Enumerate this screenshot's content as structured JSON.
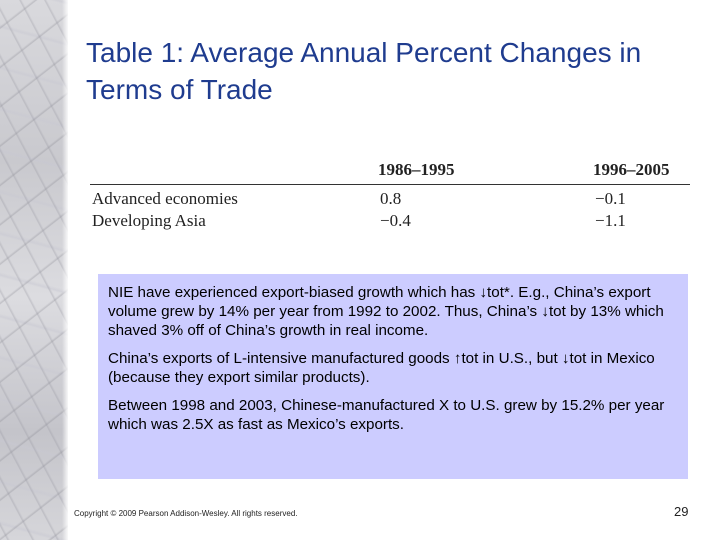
{
  "slide": {
    "title": "Table 1: Average Annual Percent Changes in Terms of Trade",
    "table": {
      "headers": [
        "",
        "1986–1995",
        "1996–2005"
      ],
      "rows": [
        {
          "label": "Advanced economies",
          "v1": "0.8",
          "v2": "−0.1"
        },
        {
          "label": "Developing Asia",
          "v1": "−0.4",
          "v2": "−1.1"
        }
      ]
    },
    "note": {
      "paragraphs": [
        "NIE have experienced export-biased growth which has ↓tot*. E.g., China’s export volume grew by 14% per year from 1992 to 2002. Thus, China’s ↓tot by 13% which shaved 3% off of China’s growth in real income.",
        "China’s exports of L-intensive manufactured goods ↑tot in U.S., but ↓tot in Mexico (because they export similar products).",
        "Between 1998 and 2003, Chinese-manufactured X to U.S. grew by 15.2% per year which was 2.5X as fast as Mexico’s exports."
      ],
      "background": "#ccccff"
    },
    "footer": {
      "copyright": "Copyright © 2009 Pearson Addison-Wesley. All rights reserved.",
      "page_number": "29"
    },
    "colors": {
      "title": "#1f3c8f"
    }
  }
}
